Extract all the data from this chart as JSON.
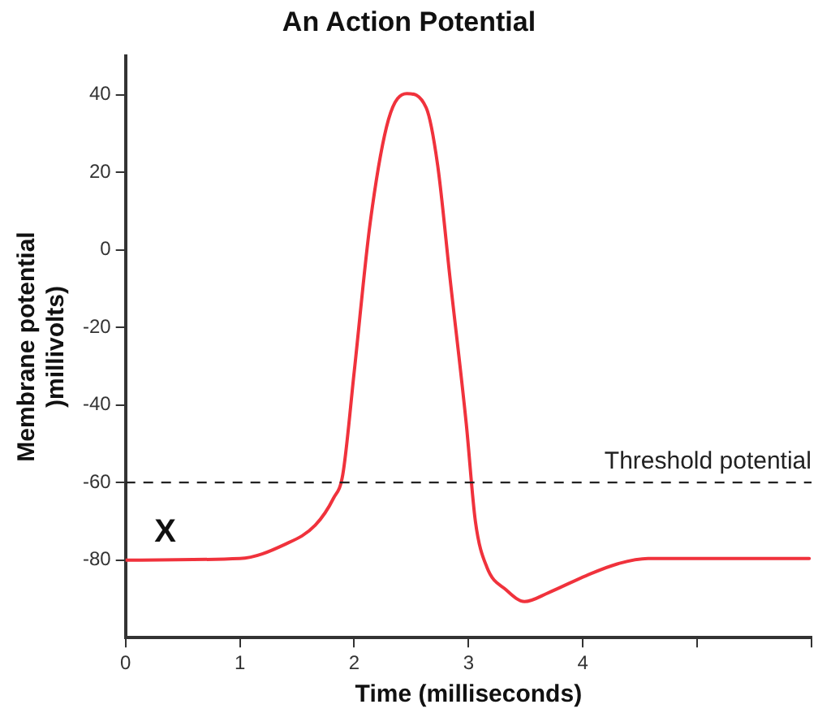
{
  "chart_data": {
    "type": "line",
    "title": "An Action Potential",
    "xlabel": "Time (milliseconds)",
    "ylabel": "Membrane potential\n)millivolts)",
    "x": [
      0,
      1,
      1.39,
      1.66,
      1.82,
      1.9,
      2,
      2.14,
      2.3,
      2.46,
      2.63,
      2.73,
      2.84,
      2.98,
      3.06,
      3.16,
      3.33,
      3.49,
      3.7,
      4.03,
      4.3,
      4.57,
      5.98
    ],
    "series": [
      {
        "color": "#f0323c",
        "values": [
          -80,
          -79.6,
          -76,
          -71,
          -64,
          -58,
          -31.5,
          7,
          33.6,
          40.3,
          36.6,
          21.8,
          -7.8,
          -44.8,
          -70,
          -81.8,
          -87.7,
          -90.7,
          -88.4,
          -84,
          -81,
          -79.6,
          -79.6
        ]
      }
    ],
    "xlim": [
      0,
      6
    ],
    "xticks": [
      0,
      1,
      2,
      3,
      4,
      {
        "value": 5,
        "label": null
      },
      {
        "value": 6,
        "label": null
      }
    ],
    "ylim": [
      -100,
      50
    ],
    "yticks": [
      40,
      20,
      0,
      -20,
      -40,
      -60,
      -80
    ],
    "ref_lines": [
      {
        "axis": "y",
        "value": -60,
        "label": "Threshold potential",
        "color": "#222222",
        "line_style": "dashed"
      }
    ],
    "annotations": [
      "X"
    ],
    "grid": false,
    "legend": false,
    "marker": "none",
    "line_style": "solid"
  }
}
